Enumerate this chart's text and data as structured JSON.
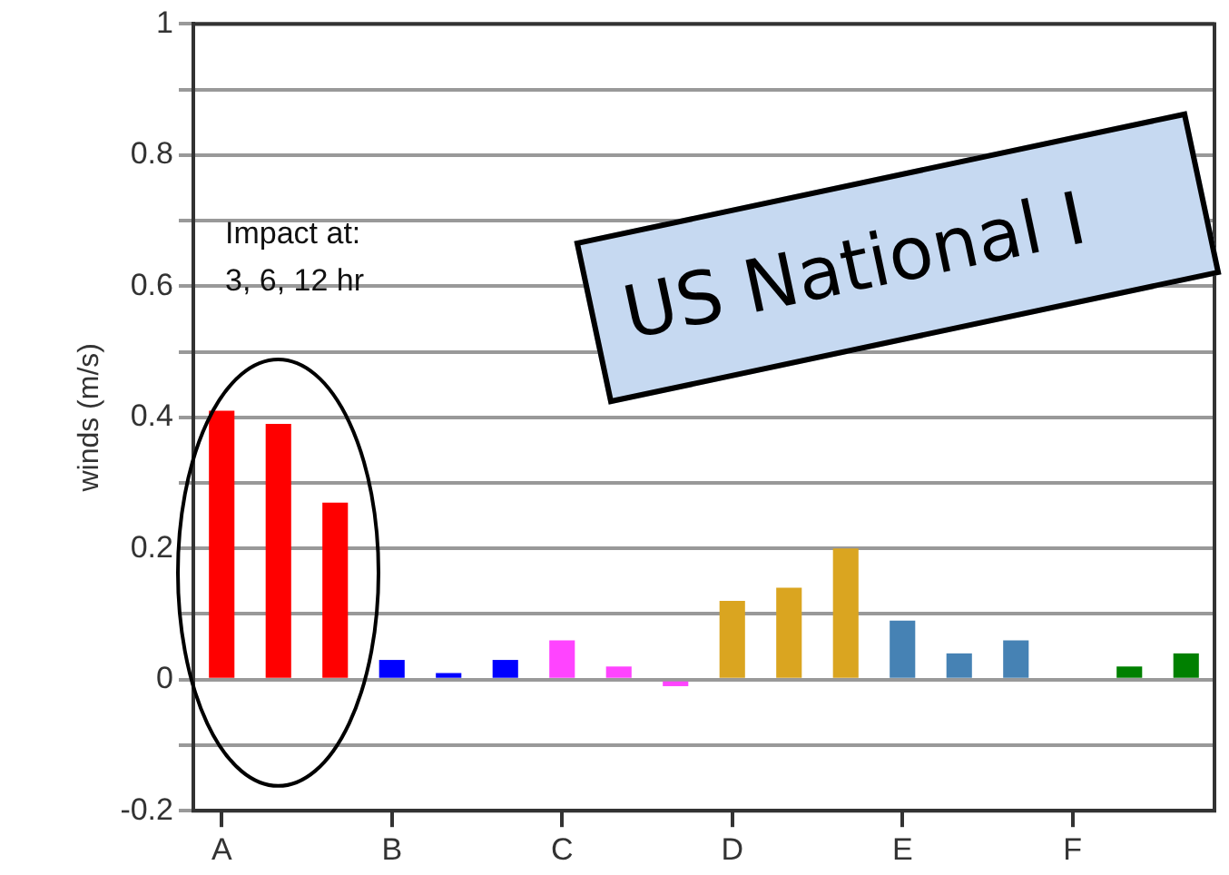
{
  "chart_data": {
    "type": "bar",
    "ylabel": "winds (m/s)",
    "categories": [
      "A",
      null,
      null,
      "B",
      null,
      null,
      "C",
      null,
      null,
      "D",
      null,
      null,
      "E",
      null,
      null,
      "F",
      null,
      null
    ],
    "values": [
      0.41,
      0.39,
      0.27,
      0.03,
      0.01,
      0.03,
      0.06,
      0.02,
      -0.01,
      0.12,
      0.14,
      0.2,
      0.09,
      0.04,
      0.06,
      0,
      0.02,
      0.04
    ],
    "colors": [
      "#ff0000",
      "#ff0000",
      "#ff0000",
      "#0000ff",
      "#0000ff",
      "#0000ff",
      "#ff44ff",
      "#ff44ff",
      "#ff44ff",
      "#daa520",
      "#daa520",
      "#daa520",
      "#4682b4",
      "#4682b4",
      "#4682b4",
      "#008000",
      "#008000",
      "#008000"
    ],
    "ylim": [
      -0.2,
      1
    ],
    "yticks": [
      -0.2,
      {
        "value": -0.1,
        "label": null
      },
      0,
      {
        "value": 0.1,
        "label": null
      },
      0.2,
      {
        "value": 0.3,
        "label": null
      },
      0.4,
      {
        "value": 0.5,
        "label": null
      },
      0.6,
      {
        "value": 0.7,
        "label": null
      },
      0.8,
      {
        "value": 0.9,
        "label": null
      },
      1
    ],
    "grid": "y",
    "legend": false,
    "annotations": [
      "Impact at:\n3, 6, 12 hr",
      "US National I"
    ]
  }
}
